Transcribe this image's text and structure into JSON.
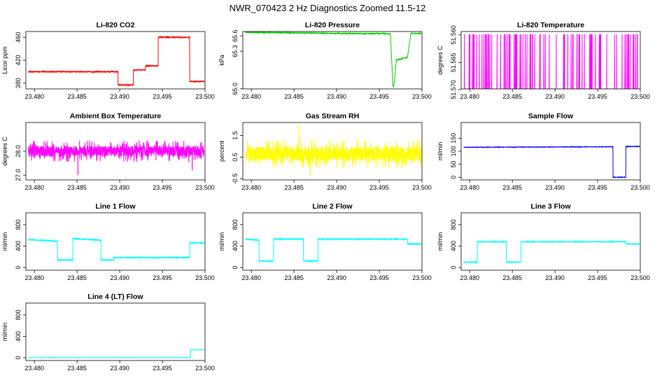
{
  "page_title": "NWR_070423  2 Hz Diagnostics Zoomed 11.5-12",
  "chart_data": [
    {
      "type": "line",
      "title": "Li-820 CO2",
      "ylabel": "Licor ppm",
      "xlim": [
        23.479,
        23.5
      ],
      "xticks": [
        23.48,
        23.485,
        23.49,
        23.495,
        23.5
      ],
      "xtick_labels": [
        "23.480",
        "23.485",
        "23.490",
        "23.495",
        "23.500"
      ],
      "ylim": [
        370,
        470
      ],
      "yticks": [
        380,
        420,
        460
      ],
      "ytick_labels": [
        "380",
        "420",
        "460"
      ],
      "series": [
        {
          "color": "#ff0000",
          "noise": 0.8,
          "x": [
            23.4793,
            23.4898,
            23.4898,
            23.4916,
            23.4916,
            23.493,
            23.493,
            23.4945,
            23.4945,
            23.4982,
            23.4982,
            23.4999
          ],
          "y": [
            400,
            400,
            377,
            377,
            403,
            403,
            410,
            410,
            460,
            460,
            383,
            383
          ]
        }
      ]
    },
    {
      "type": "line",
      "title": "Li-820 Pressure",
      "ylabel": "kPa",
      "xlim": [
        23.479,
        23.5
      ],
      "xticks": [
        23.48,
        23.485,
        23.49,
        23.495,
        23.5
      ],
      "xtick_labels": [
        "23.480",
        "23.485",
        "23.490",
        "23.495",
        "23.500"
      ],
      "ylim": [
        64.92,
        85.9
      ],
      "yticks": [
        65.0,
        65.3,
        65.6
      ],
      "ytick_labels": [
        "65.0",
        "65.3",
        "65.6"
      ],
      "ytick_pos": [
        64.96,
        78.7,
        84.3
      ],
      "series": [
        {
          "color": "#00cc00",
          "noise": 0.15,
          "x": [
            23.4793,
            23.4935,
            23.4955,
            23.4963,
            23.4966,
            23.4967,
            23.497,
            23.497,
            23.4983,
            23.4983,
            23.4987,
            23.4999
          ],
          "y": [
            85.6,
            85.1,
            85.2,
            85.0,
            66.0,
            66.0,
            75.5,
            75.5,
            76.5,
            76.5,
            85.2,
            85.2
          ]
        }
      ]
    },
    {
      "type": "line",
      "title": "Li-820 Temperature",
      "ylabel": "degrees C",
      "xlim": [
        23.479,
        23.5
      ],
      "xticks": [
        23.48,
        23.485,
        23.49,
        23.495,
        23.5
      ],
      "xtick_labels": [
        "23.480",
        "23.485",
        "23.490",
        "23.495",
        "23.500"
      ],
      "ylim": [
        51.5691,
        51.5606
      ],
      "yticks": [
        51.57,
        51.565,
        51.56
      ],
      "ytick_labels": [
        "51.570",
        "51.565",
        "51.560"
      ],
      "ytick_pos": [
        51.5692,
        51.5652,
        51.5611
      ],
      "series": [
        {
          "color": "#ff00ff",
          "mode": "toggle",
          "x_range": [
            23.4793,
            23.4999
          ],
          "levels": [
            51.561,
            51.5691
          ]
        }
      ]
    },
    {
      "type": "line",
      "title": "Ambient Box Temperature",
      "ylabel": "degrees C",
      "xlim": [
        23.479,
        23.5
      ],
      "xticks": [
        23.48,
        23.485,
        23.49,
        23.495,
        23.5
      ],
      "xtick_labels": [
        "23.480",
        "23.485",
        "23.490",
        "23.495",
        "23.500"
      ],
      "ylim": [
        26.8,
        29.2
      ],
      "yticks": [
        27.0,
        28.0
      ],
      "ytick_labels": [
        "27.0",
        "28.0"
      ],
      "series": [
        {
          "color": "#ff00ff",
          "noise": 0.28,
          "spikes": [
            [
              23.4851,
              27.0
            ],
            [
              23.4985,
              27.2
            ]
          ],
          "x": [
            23.4793,
            23.4999
          ],
          "y": [
            28.0,
            28.0
          ]
        }
      ]
    },
    {
      "type": "line",
      "title": "Gas Stream RH",
      "ylabel": "percent",
      "xlim": [
        23.479,
        23.5
      ],
      "xticks": [
        23.48,
        23.485,
        23.49,
        23.495,
        23.5
      ],
      "xtick_labels": [
        "23.480",
        "23.485",
        "23.490",
        "23.495",
        "23.500"
      ],
      "ylim": [
        -0.55,
        2.1
      ],
      "yticks": [
        -0.5,
        0.5,
        1.5
      ],
      "ytick_labels": [
        "-0.5",
        "0.5",
        "1.5"
      ],
      "series": [
        {
          "color": "#ffff00",
          "noise": 0.42,
          "spikes": [
            [
              23.4856,
              2.0
            ],
            [
              23.4869,
              -0.35
            ]
          ],
          "x": [
            23.4793,
            23.4999
          ],
          "y": [
            0.65,
            0.65
          ]
        }
      ]
    },
    {
      "type": "line",
      "title": "Sample Flow",
      "ylabel": "ml/min",
      "xlim": [
        23.479,
        23.5
      ],
      "xticks": [
        23.48,
        23.485,
        23.49,
        23.495,
        23.5
      ],
      "xtick_labels": [
        "23.480",
        "23.485",
        "23.490",
        "23.495",
        "23.500"
      ],
      "ylim": [
        -10,
        210
      ],
      "yticks": [
        0,
        50,
        100,
        150
      ],
      "ytick_labels": [
        "0",
        "50",
        "100",
        "150"
      ],
      "series": [
        {
          "color": "#0000ff",
          "noise": 0.8,
          "x": [
            23.4793,
            23.4968,
            23.4968,
            23.4983,
            23.4983,
            23.4999
          ],
          "y": [
            115,
            117,
            0,
            0,
            118,
            118
          ]
        }
      ]
    },
    {
      "type": "line",
      "title": "Line 1 Flow",
      "ylabel": "ml/min",
      "xlim": [
        23.479,
        23.5
      ],
      "xticks": [
        23.48,
        23.485,
        23.49,
        23.495,
        23.5
      ],
      "xtick_labels": [
        "23.480",
        "23.485",
        "23.490",
        "23.495",
        "23.500"
      ],
      "ylim": [
        -50,
        1020
      ],
      "yticks": [
        0,
        400,
        800
      ],
      "ytick_labels": [
        "0",
        "400",
        "800"
      ],
      "series": [
        {
          "color": "#00ffff",
          "noise": 8,
          "x": [
            23.4793,
            23.4827,
            23.4827,
            23.4845,
            23.4845,
            23.4878,
            23.4878,
            23.4893,
            23.4893,
            23.4982,
            23.4982,
            23.4999
          ],
          "y": [
            520,
            490,
            140,
            140,
            540,
            510,
            140,
            140,
            185,
            185,
            460,
            460
          ]
        }
      ]
    },
    {
      "type": "line",
      "title": "Line 2 Flow",
      "ylabel": "ml/min",
      "xlim": [
        23.479,
        23.5
      ],
      "xticks": [
        23.48,
        23.485,
        23.49,
        23.495,
        23.5
      ],
      "xtick_labels": [
        "23.480",
        "23.485",
        "23.490",
        "23.495",
        "23.500"
      ],
      "ylim": [
        -50,
        1020
      ],
      "yticks": [
        0,
        400,
        800
      ],
      "ytick_labels": [
        "0",
        "400",
        "800"
      ],
      "series": [
        {
          "color": "#00ffff",
          "noise": 8,
          "x": [
            23.4793,
            23.4809,
            23.4809,
            23.4826,
            23.4826,
            23.4861,
            23.4861,
            23.4878,
            23.4878,
            23.4983,
            23.4983,
            23.4999
          ],
          "y": [
            530,
            510,
            120,
            120,
            530,
            530,
            120,
            120,
            530,
            530,
            440,
            440
          ]
        }
      ]
    },
    {
      "type": "line",
      "title": "Line 3 Flow",
      "ylabel": "ml/min",
      "xlim": [
        23.479,
        23.5
      ],
      "xticks": [
        23.48,
        23.485,
        23.49,
        23.495,
        23.5
      ],
      "xtick_labels": [
        "23.480",
        "23.485",
        "23.490",
        "23.495",
        "23.500"
      ],
      "ylim": [
        -50,
        1020
      ],
      "yticks": [
        0,
        400,
        800
      ],
      "ytick_labels": [
        "0",
        "400",
        "800"
      ],
      "series": [
        {
          "color": "#00ffff",
          "noise": 6,
          "x": [
            23.4793,
            23.4809,
            23.4809,
            23.4843,
            23.4843,
            23.486,
            23.486,
            23.4983,
            23.4983,
            23.4999
          ],
          "y": [
            100,
            100,
            480,
            480,
            100,
            100,
            480,
            480,
            440,
            440
          ]
        }
      ]
    },
    {
      "type": "line",
      "title": "Line 4 (LT) Flow",
      "ylabel": "ml/min",
      "xlim": [
        23.479,
        23.5
      ],
      "xticks": [
        23.48,
        23.485,
        23.49,
        23.495,
        23.5
      ],
      "xtick_labels": [
        "23.480",
        "23.485",
        "23.490",
        "23.495",
        "23.500"
      ],
      "ylim": [
        -50,
        1020
      ],
      "yticks": [
        0,
        400,
        800
      ],
      "ytick_labels": [
        "0",
        "400",
        "800"
      ],
      "series": [
        {
          "color": "#00ffff",
          "noise": 2,
          "x": [
            23.4793,
            23.4983,
            23.4983,
            23.4999
          ],
          "y": [
            5,
            5,
            150,
            150
          ]
        }
      ]
    }
  ]
}
